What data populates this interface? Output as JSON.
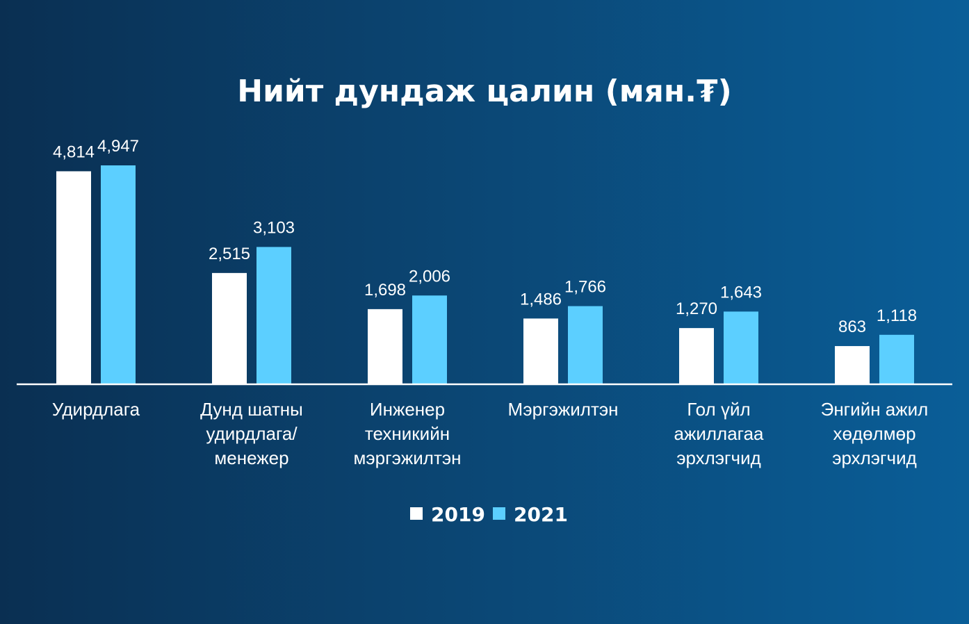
{
  "chart_data": {
    "type": "bar",
    "title": "Нийт дундаж цалин (мян.₮)",
    "categories": [
      [
        "Удирдлага"
      ],
      [
        "Дунд шатны",
        "удирдлага/",
        "менежер"
      ],
      [
        "Инженер",
        "техникийн",
        "мэргэжилтэн"
      ],
      [
        "Мэргэжилтэн"
      ],
      [
        "Гол үйл",
        "ажиллагаа",
        "эрхлэгчид"
      ],
      [
        "Энгийн ажил",
        "хөдөлмөр",
        "эрхлэгчид"
      ]
    ],
    "series": [
      {
        "name": "2019",
        "color": "#ffffff",
        "values": [
          4814,
          2515,
          1698,
          1486,
          1270,
          863
        ],
        "labels": [
          "4,814",
          "2,515",
          "1,698",
          "1,486",
          "1,270",
          "863"
        ]
      },
      {
        "name": "2021",
        "color": "#5ccfff",
        "values": [
          4947,
          3103,
          2006,
          1766,
          1643,
          1118
        ],
        "labels": [
          "4,947",
          "3,103",
          "2,006",
          "1,766",
          "1,643",
          "1,118"
        ]
      }
    ],
    "ylim": [
      0,
      4947
    ],
    "grid": false,
    "legend_position": "bottom"
  }
}
